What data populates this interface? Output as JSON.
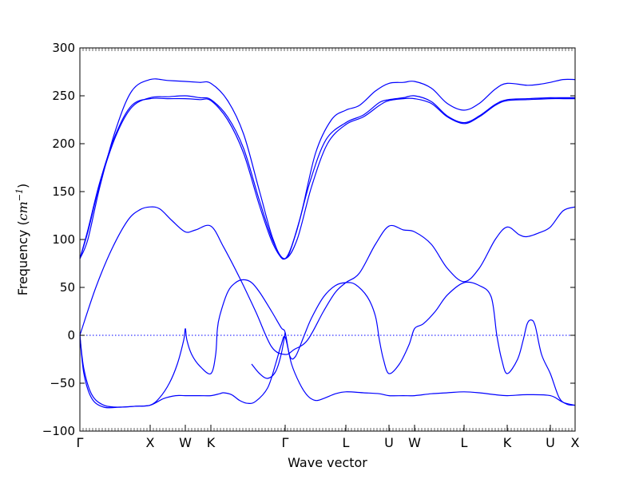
{
  "chart_data": {
    "type": "line",
    "title": "",
    "xlabel": "Wave vector",
    "ylabel_text": "Frequency (",
    "ylabel_unit": "cm",
    "ylabel_exp": "−1",
    "ylabel_close": ")",
    "xlim": [
      0,
      620
    ],
    "ylim": [
      -100,
      300
    ],
    "y_ticks": [
      -100,
      -50,
      0,
      50,
      100,
      150,
      200,
      250,
      300
    ],
    "y_tick_labels": [
      "−100",
      "−50",
      "0",
      "50",
      "100",
      "150",
      "200",
      "250",
      "300"
    ],
    "x_ticks": [
      {
        "x": 0,
        "label": "Γ"
      },
      {
        "x": 88,
        "label": "X"
      },
      {
        "x": 132,
        "label": "W"
      },
      {
        "x": 164,
        "label": "K"
      },
      {
        "x": 257,
        "label": "Γ"
      },
      {
        "x": 333,
        "label": "L"
      },
      {
        "x": 387,
        "label": "U"
      },
      {
        "x": 419,
        "label": "W"
      },
      {
        "x": 481,
        "label": "L"
      },
      {
        "x": 535,
        "label": "K"
      },
      {
        "x": 589,
        "label": "U"
      },
      {
        "x": 620,
        "label": "X"
      }
    ],
    "zero_line": 0,
    "line_color": "#0000ff",
    "series": [
      {
        "values": [
          [
            0,
            80
          ],
          [
            10,
            110
          ],
          [
            25,
            160
          ],
          [
            45,
            210
          ],
          [
            65,
            240
          ],
          [
            88,
            247
          ],
          [
            110,
            247
          ],
          [
            132,
            247
          ],
          [
            150,
            246
          ],
          [
            164,
            245
          ],
          [
            185,
            225
          ],
          [
            205,
            190
          ],
          [
            225,
            135
          ],
          [
            242,
            95
          ],
          [
            257,
            80
          ],
          [
            272,
            100
          ],
          [
            290,
            155
          ],
          [
            310,
            200
          ],
          [
            333,
            220
          ],
          [
            355,
            228
          ],
          [
            375,
            240
          ],
          [
            387,
            245
          ],
          [
            405,
            247
          ],
          [
            419,
            247
          ],
          [
            440,
            242
          ],
          [
            460,
            228
          ],
          [
            481,
            221
          ],
          [
            500,
            228
          ],
          [
            520,
            240
          ],
          [
            535,
            245
          ],
          [
            560,
            246
          ],
          [
            589,
            247
          ],
          [
            605,
            247
          ],
          [
            620,
            247
          ]
        ]
      },
      {
        "values": [
          [
            0,
            80
          ],
          [
            10,
            108
          ],
          [
            25,
            158
          ],
          [
            45,
            208
          ],
          [
            65,
            238
          ],
          [
            88,
            248
          ],
          [
            110,
            249
          ],
          [
            132,
            250
          ],
          [
            150,
            248
          ],
          [
            164,
            246
          ],
          [
            185,
            228
          ],
          [
            205,
            195
          ],
          [
            225,
            140
          ],
          [
            242,
            98
          ],
          [
            257,
            80
          ],
          [
            270,
            105
          ],
          [
            288,
            160
          ],
          [
            308,
            204
          ],
          [
            333,
            222
          ],
          [
            355,
            230
          ],
          [
            375,
            243
          ],
          [
            387,
            246
          ],
          [
            405,
            248
          ],
          [
            419,
            250
          ],
          [
            440,
            244
          ],
          [
            460,
            229
          ],
          [
            481,
            222
          ],
          [
            500,
            229
          ],
          [
            520,
            241
          ],
          [
            535,
            246
          ],
          [
            560,
            247
          ],
          [
            589,
            248
          ],
          [
            605,
            248
          ],
          [
            620,
            248
          ]
        ]
      },
      {
        "values": [
          [
            0,
            80
          ],
          [
            10,
            100
          ],
          [
            25,
            155
          ],
          [
            45,
            215
          ],
          [
            65,
            255
          ],
          [
            88,
            267
          ],
          [
            110,
            266
          ],
          [
            132,
            265
          ],
          [
            150,
            264
          ],
          [
            164,
            263
          ],
          [
            185,
            245
          ],
          [
            205,
            210
          ],
          [
            225,
            150
          ],
          [
            242,
            100
          ],
          [
            257,
            80
          ],
          [
            275,
            120
          ],
          [
            295,
            190
          ],
          [
            315,
            225
          ],
          [
            333,
            235
          ],
          [
            350,
            240
          ],
          [
            370,
            255
          ],
          [
            387,
            263
          ],
          [
            405,
            264
          ],
          [
            419,
            265
          ],
          [
            440,
            258
          ],
          [
            460,
            242
          ],
          [
            481,
            235
          ],
          [
            500,
            242
          ],
          [
            520,
            257
          ],
          [
            535,
            263
          ],
          [
            560,
            261
          ],
          [
            575,
            262
          ],
          [
            589,
            264
          ],
          [
            605,
            267
          ],
          [
            620,
            267
          ]
        ]
      },
      {
        "values": [
          [
            0,
            0
          ],
          [
            20,
            50
          ],
          [
            40,
            90
          ],
          [
            60,
            120
          ],
          [
            75,
            131
          ],
          [
            88,
            134
          ],
          [
            100,
            132
          ],
          [
            115,
            120
          ],
          [
            132,
            108
          ],
          [
            145,
            110
          ],
          [
            164,
            114
          ],
          [
            180,
            92
          ],
          [
            200,
            60
          ],
          [
            220,
            25
          ],
          [
            240,
            -12
          ],
          [
            257,
            -20
          ],
          [
            268,
            -15
          ],
          [
            285,
            -5
          ],
          [
            305,
            25
          ],
          [
            320,
            45
          ],
          [
            333,
            55
          ],
          [
            350,
            65
          ],
          [
            370,
            95
          ],
          [
            387,
            114
          ],
          [
            405,
            110
          ],
          [
            419,
            108
          ],
          [
            440,
            95
          ],
          [
            460,
            70
          ],
          [
            481,
            56
          ],
          [
            500,
            70
          ],
          [
            520,
            100
          ],
          [
            535,
            113
          ],
          [
            550,
            105
          ],
          [
            560,
            103
          ],
          [
            575,
            107
          ],
          [
            589,
            113
          ],
          [
            605,
            130
          ],
          [
            620,
            134
          ]
        ]
      },
      {
        "values": [
          [
            0,
            0
          ],
          [
            5,
            -35
          ],
          [
            15,
            -62
          ],
          [
            30,
            -73
          ],
          [
            50,
            -75
          ],
          [
            70,
            -74
          ],
          [
            88,
            -73
          ],
          [
            105,
            -66
          ],
          [
            120,
            -63
          ],
          [
            132,
            -63
          ],
          [
            150,
            -63
          ],
          [
            164,
            -63
          ],
          [
            175,
            -61
          ],
          [
            180,
            -60
          ],
          [
            190,
            -62
          ],
          [
            200,
            -68
          ],
          [
            210,
            -71
          ],
          [
            220,
            -69
          ],
          [
            235,
            -55
          ],
          [
            245,
            -30
          ],
          [
            252,
            -10
          ],
          [
            257,
            -2
          ],
          [
            265,
            -30
          ],
          [
            275,
            -50
          ],
          [
            285,
            -63
          ],
          [
            295,
            -68
          ],
          [
            305,
            -66
          ],
          [
            320,
            -61
          ],
          [
            333,
            -59
          ],
          [
            355,
            -60
          ],
          [
            375,
            -61
          ],
          [
            387,
            -63
          ],
          [
            405,
            -63
          ],
          [
            419,
            -63
          ],
          [
            440,
            -61
          ],
          [
            460,
            -60
          ],
          [
            481,
            -59
          ],
          [
            500,
            -60
          ],
          [
            520,
            -62
          ],
          [
            535,
            -63
          ],
          [
            560,
            -62
          ],
          [
            589,
            -63
          ],
          [
            605,
            -70
          ],
          [
            620,
            -73
          ]
        ]
      },
      {
        "values": [
          [
            0,
            0
          ],
          [
            5,
            -40
          ],
          [
            15,
            -66
          ],
          [
            30,
            -75
          ],
          [
            50,
            -75
          ],
          [
            70,
            -74
          ],
          [
            88,
            -73
          ],
          [
            100,
            -65
          ],
          [
            112,
            -50
          ],
          [
            122,
            -30
          ],
          [
            130,
            -5
          ],
          [
            132,
            7
          ],
          [
            134,
            -5
          ],
          [
            140,
            -20
          ],
          [
            150,
            -32
          ],
          [
            164,
            -40
          ],
          [
            170,
            -20
          ],
          [
            172,
            5
          ],
          [
            175,
            20
          ],
          [
            185,
            45
          ],
          [
            195,
            55
          ],
          [
            205,
            58
          ],
          [
            215,
            55
          ],
          [
            225,
            45
          ],
          [
            240,
            25
          ],
          [
            252,
            8
          ],
          [
            257,
            3
          ],
          [
            263,
            -22
          ],
          [
            270,
            -22
          ],
          [
            280,
            -2
          ],
          [
            290,
            18
          ],
          [
            305,
            40
          ],
          [
            320,
            52
          ],
          [
            333,
            55
          ],
          [
            345,
            53
          ],
          [
            360,
            40
          ],
          [
            370,
            20
          ],
          [
            375,
            -5
          ],
          [
            380,
            -25
          ],
          [
            387,
            -40
          ],
          [
            400,
            -30
          ],
          [
            412,
            -10
          ],
          [
            419,
            7
          ],
          [
            430,
            12
          ],
          [
            445,
            25
          ],
          [
            460,
            42
          ],
          [
            481,
            55
          ],
          [
            500,
            52
          ],
          [
            515,
            40
          ],
          [
            522,
            0
          ],
          [
            528,
            -25
          ],
          [
            535,
            -40
          ],
          [
            548,
            -25
          ],
          [
            555,
            -5
          ],
          [
            560,
            12
          ],
          [
            565,
            16
          ],
          [
            570,
            10
          ],
          [
            578,
            -20
          ],
          [
            589,
            -40
          ],
          [
            600,
            -65
          ],
          [
            610,
            -72
          ],
          [
            620,
            -73
          ]
        ]
      },
      {
        "values": [
          [
            215,
            -30
          ],
          [
            225,
            -40
          ],
          [
            235,
            -45
          ],
          [
            245,
            -38
          ],
          [
            252,
            -20
          ],
          [
            257,
            3
          ]
        ]
      }
    ]
  }
}
